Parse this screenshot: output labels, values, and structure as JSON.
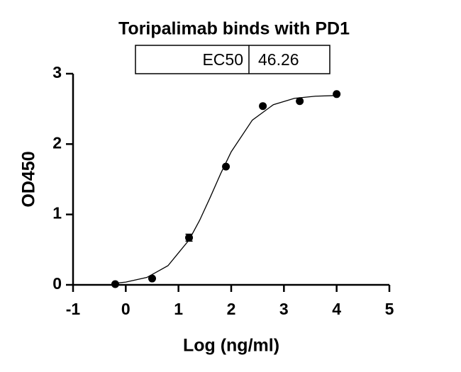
{
  "chart_data": {
    "type": "scatter",
    "title": "Toripalimab binds with PD1",
    "table": {
      "label": "EC50",
      "value": 46.26
    },
    "xlabel": "Log (ng/ml)",
    "ylabel": "OD450",
    "xlim": [
      -1,
      5
    ],
    "xticks": [
      -1,
      0,
      1,
      2,
      3,
      4,
      5
    ],
    "ylim": [
      0,
      3
    ],
    "yticks": [
      0,
      1,
      2,
      3
    ],
    "series": [
      {
        "x": [
          -0.2,
          0.5,
          1.2,
          1.9,
          2.6,
          3.3,
          4.0
        ],
        "values": [
          0.01,
          0.09,
          0.67,
          1.68,
          2.54,
          2.61,
          2.71
        ],
        "errors": [
          null,
          null,
          0.05,
          null,
          null,
          null,
          null
        ],
        "color": "#000000"
      },
      {
        "type": "line",
        "x": [
          -0.2,
          0,
          0.4,
          0.8,
          1.2,
          1.4,
          1.6,
          1.8,
          2.0,
          2.4,
          2.8,
          3.2,
          3.6,
          4.0
        ],
        "values": [
          0.024,
          0.039,
          0.105,
          0.272,
          0.637,
          0.915,
          1.24,
          1.58,
          1.89,
          2.34,
          2.56,
          2.65,
          2.68,
          2.69
        ],
        "color": "#000000"
      }
    ]
  }
}
